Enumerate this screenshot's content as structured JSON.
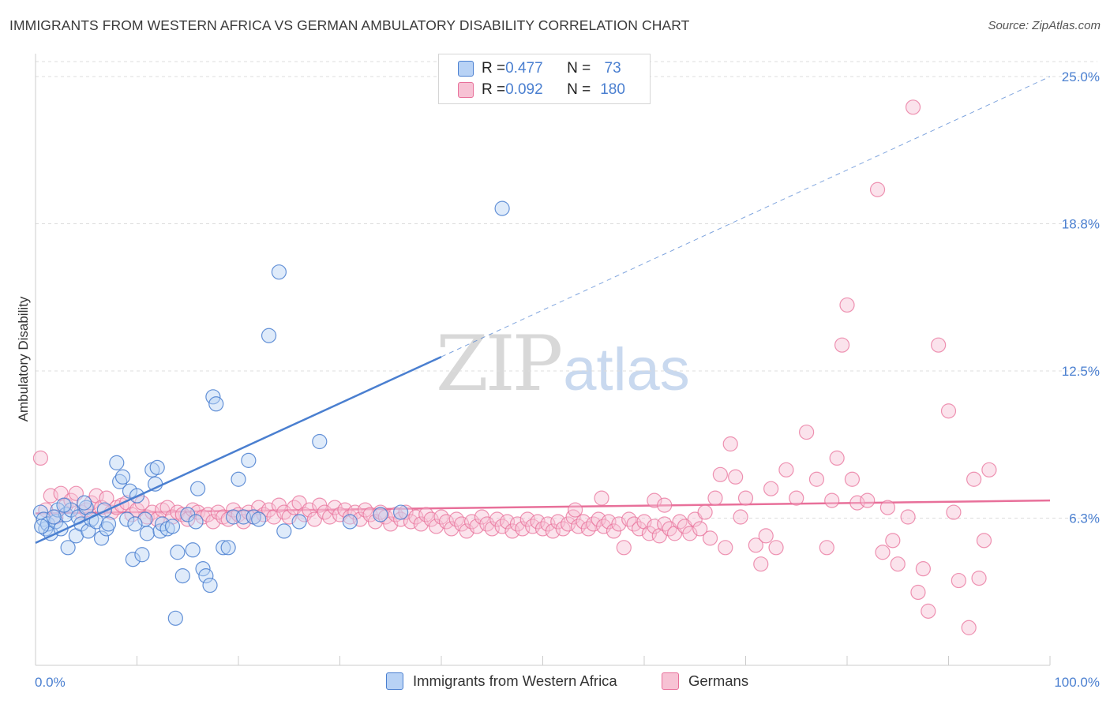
{
  "header": {
    "title": "IMMIGRANTS FROM WESTERN AFRICA VS GERMAN AMBULATORY DISABILITY CORRELATION CHART",
    "source": "Source: ZipAtlas.com"
  },
  "watermark": {
    "zip": "ZIP",
    "atlas": "atlas"
  },
  "legend": {
    "rows": [
      {
        "r_label": "R = ",
        "r_value": "0.477",
        "n_label": "N = ",
        "n_value": " 73"
      },
      {
        "r_label": "R = ",
        "r_value": "0.092",
        "n_label": "N = ",
        "n_value": "180"
      }
    ]
  },
  "chart_data": {
    "type": "scatter",
    "xlabel": "",
    "ylabel": "Ambulatory Disability",
    "xlim": [
      0,
      100
    ],
    "ylim": [
      0,
      25
    ],
    "x_tick_labels": [
      "0.0%",
      "100.0%"
    ],
    "y_ticks": [
      {
        "value": 6.25,
        "label": "6.3%"
      },
      {
        "value": 12.5,
        "label": "12.5%"
      },
      {
        "value": 18.75,
        "label": "18.8%"
      },
      {
        "value": 25.0,
        "label": "25.0%"
      }
    ],
    "colors": {
      "blue": "#4a7fd0",
      "blue_fill": "#b8d2f5",
      "pink": "#e8709a",
      "pink_fill": "#f7c2d4"
    },
    "series": [
      {
        "name": "Immigrants from Western Africa",
        "color": "#4a7fd0",
        "trend": {
          "x0": 0,
          "y0": 5.2,
          "x1": 40,
          "y1": 13.1,
          "extend_to_x": 100,
          "extend_to_y": 25.0
        },
        "points": [
          [
            0.5,
            6.5
          ],
          [
            0.8,
            6.2
          ],
          [
            1,
            5.8
          ],
          [
            1.2,
            6.0
          ],
          [
            1.5,
            5.6
          ],
          [
            2,
            6.1
          ],
          [
            2.2,
            6.6
          ],
          [
            2.5,
            5.8
          ],
          [
            3,
            6.4
          ],
          [
            3.2,
            5.0
          ],
          [
            3.5,
            6.6
          ],
          [
            4,
            5.5
          ],
          [
            4.2,
            6.3
          ],
          [
            4.5,
            6.0
          ],
          [
            5,
            6.7
          ],
          [
            5.2,
            5.7
          ],
          [
            5.5,
            6.2
          ],
          [
            6,
            6.1
          ],
          [
            6.5,
            5.4
          ],
          [
            7,
            5.8
          ],
          [
            7.2,
            6.0
          ],
          [
            8,
            8.6
          ],
          [
            8.3,
            7.8
          ],
          [
            8.6,
            8.0
          ],
          [
            9,
            6.2
          ],
          [
            9.3,
            7.4
          ],
          [
            9.6,
            4.5
          ],
          [
            10,
            7.2
          ],
          [
            10.5,
            4.7
          ],
          [
            10.8,
            6.2
          ],
          [
            11,
            5.6
          ],
          [
            11.5,
            8.3
          ],
          [
            11.8,
            7.7
          ],
          [
            12,
            8.4
          ],
          [
            12.3,
            5.7
          ],
          [
            12.5,
            6.0
          ],
          [
            13,
            5.8
          ],
          [
            13.5,
            5.9
          ],
          [
            13.8,
            2.0
          ],
          [
            14,
            4.8
          ],
          [
            14.5,
            3.8
          ],
          [
            15,
            6.4
          ],
          [
            15.5,
            4.9
          ],
          [
            15.8,
            6.1
          ],
          [
            16,
            7.5
          ],
          [
            16.5,
            4.1
          ],
          [
            16.8,
            3.8
          ],
          [
            17.2,
            3.4
          ],
          [
            17.5,
            11.4
          ],
          [
            17.8,
            11.1
          ],
          [
            18.5,
            5.0
          ],
          [
            19,
            5.0
          ],
          [
            19.5,
            6.3
          ],
          [
            20,
            7.9
          ],
          [
            20.5,
            6.3
          ],
          [
            21,
            8.7
          ],
          [
            21.5,
            6.3
          ],
          [
            22,
            6.2
          ],
          [
            23,
            14.0
          ],
          [
            24,
            16.7
          ],
          [
            24.5,
            5.7
          ],
          [
            26,
            6.1
          ],
          [
            28,
            9.5
          ],
          [
            31,
            6.1
          ],
          [
            34,
            6.4
          ],
          [
            36,
            6.5
          ],
          [
            46,
            19.4
          ],
          [
            0.6,
            5.9
          ],
          [
            1.8,
            6.3
          ],
          [
            2.8,
            6.8
          ],
          [
            4.8,
            6.9
          ],
          [
            6.8,
            6.6
          ],
          [
            9.8,
            6.0
          ]
        ]
      },
      {
        "name": "Germans",
        "color": "#e8709a",
        "trend": {
          "x0": 0,
          "y0": 6.45,
          "x1": 100,
          "y1": 7.0
        },
        "points": [
          [
            0.5,
            8.8
          ],
          [
            1,
            6.6
          ],
          [
            1.5,
            7.2
          ],
          [
            2,
            6.3
          ],
          [
            2.5,
            7.3
          ],
          [
            3,
            6.8
          ],
          [
            3.5,
            7.0
          ],
          [
            4,
            7.3
          ],
          [
            4.5,
            6.5
          ],
          [
            5,
            6.6
          ],
          [
            5.5,
            6.9
          ],
          [
            6,
            7.2
          ],
          [
            6.5,
            6.7
          ],
          [
            7,
            7.1
          ],
          [
            7.5,
            6.5
          ],
          [
            8,
            6.7
          ],
          [
            8.5,
            6.8
          ],
          [
            9,
            6.9
          ],
          [
            9.5,
            6.4
          ],
          [
            10,
            6.6
          ],
          [
            10.5,
            6.9
          ],
          [
            11,
            6.3
          ],
          [
            11.5,
            6.5
          ],
          [
            12,
            6.2
          ],
          [
            12.5,
            6.6
          ],
          [
            13,
            6.7
          ],
          [
            13.5,
            6.3
          ],
          [
            14,
            6.5
          ],
          [
            14.5,
            6.4
          ],
          [
            15,
            6.2
          ],
          [
            15.5,
            6.6
          ],
          [
            16,
            6.5
          ],
          [
            16.5,
            6.3
          ],
          [
            17,
            6.4
          ],
          [
            17.5,
            6.1
          ],
          [
            18,
            6.5
          ],
          [
            18.5,
            6.3
          ],
          [
            19,
            6.2
          ],
          [
            19.5,
            6.6
          ],
          [
            20,
            6.4
          ],
          [
            20.5,
            6.1
          ],
          [
            21,
            6.5
          ],
          [
            21.5,
            6.3
          ],
          [
            22,
            6.7
          ],
          [
            22.5,
            6.4
          ],
          [
            23,
            6.6
          ],
          [
            23.5,
            6.3
          ],
          [
            24,
            6.8
          ],
          [
            24.5,
            6.5
          ],
          [
            25,
            6.3
          ],
          [
            25.5,
            6.7
          ],
          [
            26,
            6.9
          ],
          [
            26.5,
            6.4
          ],
          [
            27,
            6.6
          ],
          [
            27.5,
            6.2
          ],
          [
            28,
            6.8
          ],
          [
            28.5,
            6.5
          ],
          [
            29,
            6.3
          ],
          [
            29.5,
            6.7
          ],
          [
            30,
            6.4
          ],
          [
            30.5,
            6.6
          ],
          [
            31,
            6.3
          ],
          [
            31.5,
            6.5
          ],
          [
            32,
            6.2
          ],
          [
            32.5,
            6.6
          ],
          [
            33,
            6.4
          ],
          [
            33.5,
            6.1
          ],
          [
            34,
            6.5
          ],
          [
            34.5,
            6.3
          ],
          [
            35,
            6.0
          ],
          [
            35.5,
            6.4
          ],
          [
            36,
            6.2
          ],
          [
            36.5,
            6.5
          ],
          [
            37,
            6.1
          ],
          [
            37.5,
            6.3
          ],
          [
            38,
            6.0
          ],
          [
            38.5,
            6.4
          ],
          [
            39,
            6.2
          ],
          [
            39.5,
            5.9
          ],
          [
            40,
            6.3
          ],
          [
            40.5,
            6.1
          ],
          [
            41,
            5.8
          ],
          [
            41.5,
            6.2
          ],
          [
            42,
            6.0
          ],
          [
            42.5,
            5.7
          ],
          [
            43,
            6.1
          ],
          [
            43.5,
            5.9
          ],
          [
            44,
            6.3
          ],
          [
            44.5,
            6.0
          ],
          [
            45,
            5.8
          ],
          [
            45.5,
            6.2
          ],
          [
            46,
            5.9
          ],
          [
            46.5,
            6.1
          ],
          [
            47,
            5.7
          ],
          [
            47.5,
            6.0
          ],
          [
            48,
            5.8
          ],
          [
            48.5,
            6.2
          ],
          [
            49,
            5.9
          ],
          [
            49.5,
            6.1
          ],
          [
            50,
            5.8
          ],
          [
            50.5,
            6.0
          ],
          [
            51,
            5.7
          ],
          [
            51.5,
            6.1
          ],
          [
            52,
            5.8
          ],
          [
            52.5,
            6.0
          ],
          [
            53,
            6.3
          ],
          [
            53.5,
            5.9
          ],
          [
            54,
            6.1
          ],
          [
            54.5,
            5.8
          ],
          [
            55,
            6.0
          ],
          [
            55.5,
            6.2
          ],
          [
            56,
            5.9
          ],
          [
            56.5,
            6.1
          ],
          [
            57,
            5.7
          ],
          [
            57.5,
            6.0
          ],
          [
            58,
            5.0
          ],
          [
            58.5,
            6.2
          ],
          [
            59,
            6.0
          ],
          [
            59.5,
            5.8
          ],
          [
            60,
            6.1
          ],
          [
            60.5,
            5.6
          ],
          [
            61,
            5.9
          ],
          [
            61.5,
            5.5
          ],
          [
            62,
            6.0
          ],
          [
            62.5,
            5.8
          ],
          [
            63,
            5.6
          ],
          [
            63.5,
            6.1
          ],
          [
            64,
            5.9
          ],
          [
            64.5,
            5.6
          ],
          [
            65,
            6.2
          ],
          [
            65.5,
            5.8
          ],
          [
            66,
            6.5
          ],
          [
            66.5,
            5.4
          ],
          [
            67,
            7.1
          ],
          [
            67.5,
            8.1
          ],
          [
            68,
            5.0
          ],
          [
            68.5,
            9.4
          ],
          [
            69,
            8.0
          ],
          [
            69.5,
            6.3
          ],
          [
            70,
            7.1
          ],
          [
            71,
            5.1
          ],
          [
            71.5,
            4.3
          ],
          [
            72,
            5.5
          ],
          [
            72.5,
            7.5
          ],
          [
            73,
            5.0
          ],
          [
            74,
            8.3
          ],
          [
            75,
            7.1
          ],
          [
            76,
            9.9
          ],
          [
            77,
            7.9
          ],
          [
            78,
            5.0
          ],
          [
            78.5,
            7.0
          ],
          [
            79,
            8.8
          ],
          [
            79.5,
            13.6
          ],
          [
            80,
            15.3
          ],
          [
            80.5,
            7.9
          ],
          [
            81,
            6.9
          ],
          [
            82,
            7.0
          ],
          [
            83,
            20.2
          ],
          [
            83.5,
            4.8
          ],
          [
            84,
            6.7
          ],
          [
            84.5,
            5.3
          ],
          [
            85,
            4.3
          ],
          [
            86,
            6.3
          ],
          [
            86.5,
            23.7
          ],
          [
            87,
            3.1
          ],
          [
            87.5,
            4.1
          ],
          [
            88,
            2.3
          ],
          [
            89,
            13.6
          ],
          [
            90,
            10.8
          ],
          [
            90.5,
            6.5
          ],
          [
            91,
            3.6
          ],
          [
            92,
            1.6
          ],
          [
            92.5,
            7.9
          ],
          [
            93,
            3.7
          ],
          [
            93.5,
            5.3
          ],
          [
            94,
            8.3
          ],
          [
            61,
            7.0
          ],
          [
            62,
            6.8
          ],
          [
            55.8,
            7.1
          ],
          [
            53.2,
            6.6
          ]
        ]
      }
    ],
    "legend_placement": "bottom-center",
    "grid": true
  },
  "bottom_legend": {
    "items": [
      {
        "label": "Immigrants from Western Africa"
      },
      {
        "label": "Germans"
      }
    ]
  }
}
